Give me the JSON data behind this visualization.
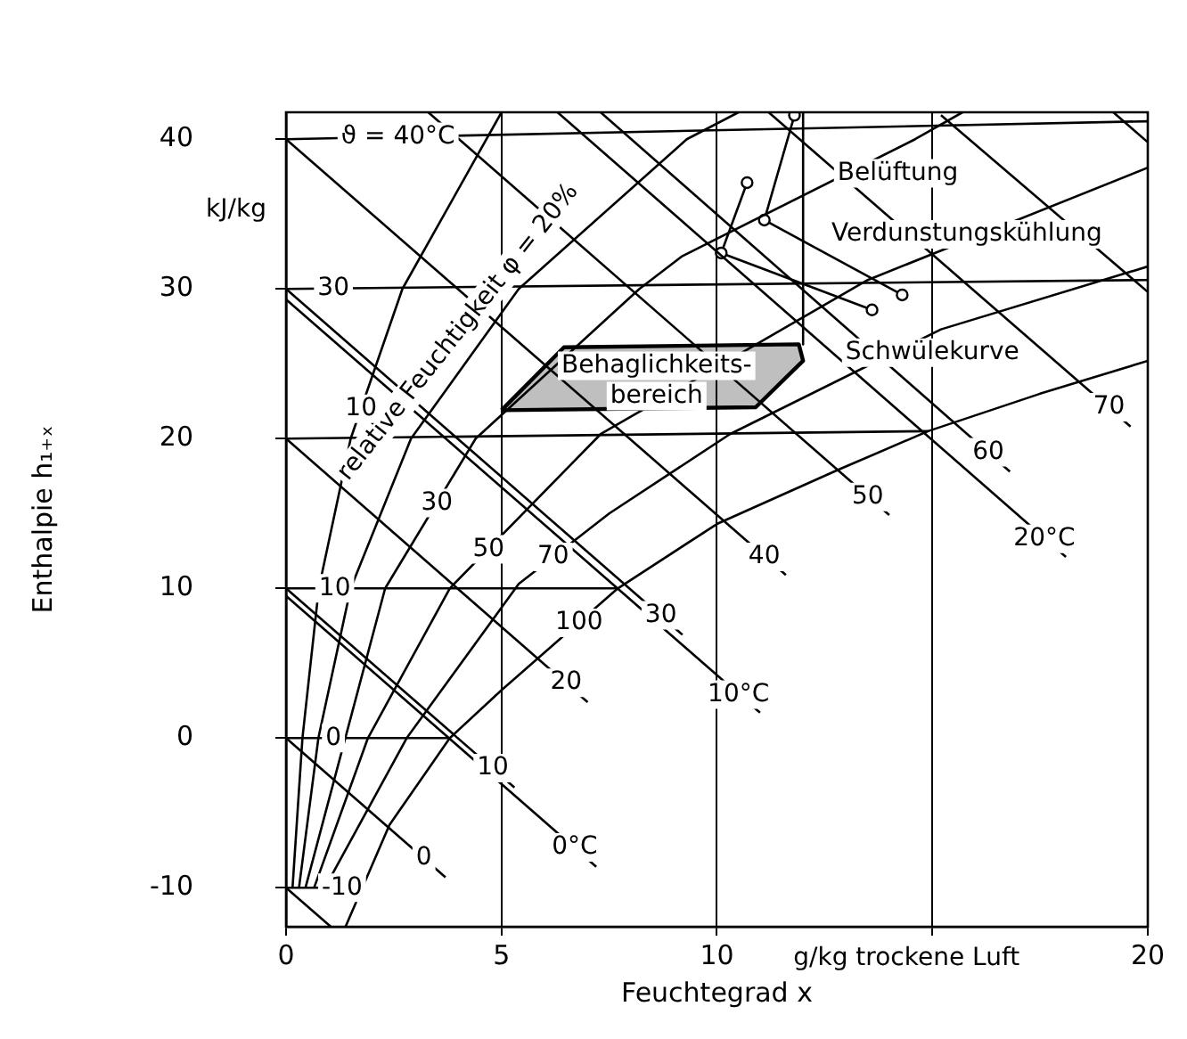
{
  "chart_data": {
    "type": "line",
    "xlabel": "Feuchtegrad x",
    "ylabel": "Enthalpie h₁₊ₓ",
    "xlim": [
      0,
      20
    ],
    "ylim": [
      -12.6,
      41.8
    ],
    "xticks": [
      0,
      5,
      10,
      {
        "value": 15,
        "label": null
      },
      20
    ],
    "yticks": [
      -10,
      0,
      10,
      20,
      30,
      40
    ],
    "grid": "x",
    "legend": false,
    "marker": "none",
    "series": [
      {
        "color": "#000000",
        "x": [
          0,
          20
        ],
        "values": [
          40,
          41.2
        ]
      },
      {
        "color": "#000000",
        "x": [
          0,
          20
        ],
        "values": [
          30,
          30.6
        ]
      },
      {
        "color": "#000000",
        "x": [
          0,
          14.9
        ],
        "values": [
          20,
          20.5
        ]
      },
      {
        "color": "#000000",
        "x": [
          0,
          7.7
        ],
        "values": [
          10,
          10
        ]
      },
      {
        "color": "#000000",
        "x": [
          0,
          3.8
        ],
        "values": [
          0,
          0
        ]
      },
      {
        "color": "#000000",
        "x": [
          0,
          0.9
        ],
        "values": [
          -10,
          -10
        ]
      },
      {
        "color": "#000000",
        "x": [
          1.38,
          2.4,
          3.8,
          5.0,
          7.7,
          10,
          12.8,
          14.9,
          17.5,
          20
        ],
        "values": [
          -12.6,
          -5.8,
          0,
          3.2,
          10,
          14.3,
          17.9,
          20.5,
          23,
          25.2
        ]
      },
      {
        "color": "#000000",
        "x": [
          0.9,
          2.8,
          5.4,
          7.5,
          10.3,
          15.2,
          20
        ],
        "values": [
          -10,
          0,
          10.3,
          15,
          20.3,
          27.3,
          31.5
        ]
      },
      {
        "color": "#000000",
        "x": [
          0.65,
          1.9,
          3.8,
          7.3,
          13.5,
          20
        ],
        "values": [
          -10,
          0,
          10,
          20.3,
          30.6,
          38.1
        ]
      },
      {
        "color": "#000000",
        "x": [
          0.45,
          2.3,
          4.4,
          8.2,
          9.2,
          14.6,
          15.7
        ],
        "values": [
          -10,
          10,
          20,
          30,
          32.2,
          40,
          41.8
        ]
      },
      {
        "color": "#000000",
        "x": [
          0.3,
          0.75,
          1.5,
          2.9,
          5.4,
          9.3,
          10.5
        ],
        "values": [
          -10,
          0,
          10,
          20,
          30,
          40,
          41.8
        ]
      },
      {
        "color": "#000000",
        "x": [
          0.15,
          0.38,
          0.76,
          1.5,
          2.7,
          5.0
        ],
        "values": [
          -10,
          0,
          10,
          20,
          30,
          41.8
        ]
      },
      {
        "color": "#000000",
        "x": [
          0,
          1.04
        ],
        "values": [
          -10,
          -12.6
        ]
      },
      {
        "color": "#000000",
        "x": [
          0,
          3.7
        ],
        "values": [
          0,
          -9.3
        ]
      },
      {
        "color": "#000000",
        "x": [
          0,
          7.2
        ],
        "values": [
          9.5,
          -8.6
        ]
      },
      {
        "color": "#000000",
        "x": [
          0,
          5.3
        ],
        "values": [
          10,
          -3.3
        ]
      },
      {
        "color": "#000000",
        "x": [
          0,
          7.0
        ],
        "values": [
          20,
          2.4
        ]
      },
      {
        "color": "#000000",
        "x": [
          0,
          11.0
        ],
        "values": [
          29.3,
          1.7
        ]
      },
      {
        "color": "#000000",
        "x": [
          0,
          9.2
        ],
        "values": [
          30,
          6.9
        ]
      },
      {
        "color": "#000000",
        "x": [
          0,
          11.6
        ],
        "values": [
          40,
          10.9
        ]
      },
      {
        "color": "#000000",
        "x": [
          3.3,
          14.0
        ],
        "values": [
          41.8,
          14.9
        ]
      },
      {
        "color": "#000000",
        "x": [
          6.3,
          18.1
        ],
        "values": [
          41.8,
          12.1
        ]
      },
      {
        "color": "#000000",
        "x": [
          7.3,
          16.8
        ],
        "values": [
          41.8,
          17.8
        ]
      },
      {
        "color": "#000000",
        "x": [
          11.2,
          19.6
        ],
        "values": [
          41.8,
          20.8
        ]
      },
      {
        "color": "#000000",
        "x": [
          15.2,
          20
        ],
        "values": [
          41.6,
          29.8
        ]
      },
      {
        "color": "#000000",
        "x": [
          19.2,
          20
        ],
        "values": [
          41.8,
          39.8
        ]
      },
      {
        "type": "area",
        "color": "#000000",
        "x": [
          5,
          6.45,
          11.9,
          12.0,
          10.9,
          5
        ],
        "values": [
          21.9,
          26.1,
          26.3,
          25.2,
          22.1,
          21.9
        ]
      },
      {
        "color": "#000000",
        "x": [
          12,
          12
        ],
        "values": [
          41.8,
          26.3
        ]
      },
      {
        "color": "#000000",
        "marker": "circle",
        "x": [
          11.8,
          11.1,
          14.3
        ],
        "values": [
          41.6,
          34.6,
          29.6
        ]
      },
      {
        "color": "#000000",
        "marker": "circle",
        "x": [
          10.7,
          10.1,
          13.6
        ],
        "values": [
          37.1,
          32.4,
          28.6
        ]
      }
    ],
    "annotations": [
      "kJ/kg",
      "g/kg trockene Luft",
      "relative Feuchtigkeit φ = 20%",
      "Behaglichkeits-\nbereich",
      "Belüftung",
      "Verdunstungskühlung",
      "Schwülekurve",
      {
        "text": "ϑ = 40°C",
        "x": 2.6,
        "y": 40.16
      },
      {
        "text": "30",
        "x": 1.1,
        "y": 30.03
      },
      {
        "text": "10",
        "x": 1.13,
        "y": 10
      },
      {
        "text": "0",
        "x": 1.1,
        "y": 0
      },
      {
        "text": "-10",
        "x": 1.3,
        "y": -10
      },
      {
        "text": "10",
        "x": 1.74,
        "y": 22
      },
      {
        "text": "30",
        "x": 3.5,
        "y": 15.7
      },
      {
        "text": "50",
        "x": 4.7,
        "y": 12.6
      },
      {
        "text": "70",
        "x": 6.2,
        "y": 12.1
      },
      {
        "text": "100",
        "x": 6.8,
        "y": 7.7
      },
      {
        "text": "0",
        "x": 3.2,
        "y": -8.0
      },
      {
        "text": "10",
        "x": 4.8,
        "y": -2.0
      },
      {
        "text": "0°C",
        "x": 6.7,
        "y": -7.3
      },
      {
        "text": "20",
        "x": 6.5,
        "y": 3.7
      },
      {
        "text": "30",
        "x": 8.7,
        "y": 8.2
      },
      {
        "text": "10°C",
        "x": 10.5,
        "y": 2.9
      },
      {
        "text": "40",
        "x": 11.1,
        "y": 12.1
      },
      {
        "text": "50",
        "x": 13.5,
        "y": 16.1
      },
      {
        "text": "60",
        "x": 16.3,
        "y": 19.1
      },
      {
        "text": "20°C",
        "x": 17.6,
        "y": 13.3
      },
      {
        "text": "70",
        "x": 19.1,
        "y": 22.1
      }
    ]
  }
}
